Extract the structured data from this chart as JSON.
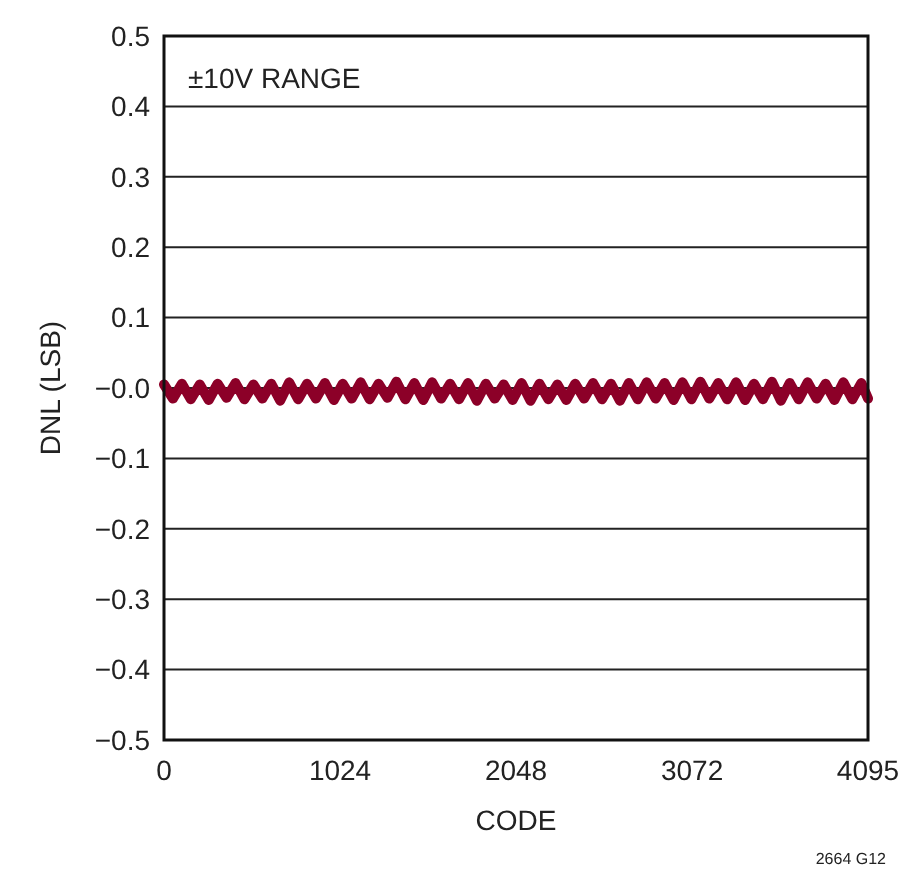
{
  "chart_data": {
    "type": "line",
    "xlabel": "CODE",
    "ylabel": "DNL (LSB)",
    "annotations": [
      "±10V RANGE",
      "2664 G12"
    ],
    "x": [
      0,
      52,
      104,
      156,
      208,
      260,
      312,
      364,
      416,
      468,
      520,
      572,
      624,
      676,
      728,
      780,
      832,
      884,
      936,
      988,
      1040,
      1092,
      1144,
      1196,
      1248,
      1300,
      1352,
      1404,
      1456,
      1508,
      1560,
      1612,
      1664,
      1716,
      1768,
      1820,
      1872,
      1924,
      1976,
      2028,
      2080,
      2132,
      2184,
      2236,
      2288,
      2340,
      2392,
      2444,
      2496,
      2548,
      2600,
      2652,
      2704,
      2756,
      2808,
      2860,
      2912,
      2964,
      3016,
      3068,
      3120,
      3172,
      3224,
      3276,
      3328,
      3380,
      3432,
      3484,
      3536,
      3588,
      3640,
      3692,
      3744,
      3796,
      3848,
      3900,
      3952,
      4004,
      4056,
      4095
    ],
    "series": [
      {
        "color": "#8c0028",
        "values": [
          0.005,
          -0.015,
          0.006,
          -0.016,
          0.005,
          -0.017,
          0.006,
          -0.014,
          0.007,
          -0.016,
          0.005,
          -0.015,
          0.006,
          -0.018,
          0.008,
          -0.016,
          0.006,
          -0.015,
          0.007,
          -0.017,
          0.006,
          -0.015,
          0.008,
          -0.016,
          0.006,
          -0.014,
          0.009,
          -0.016,
          0.007,
          -0.017,
          0.008,
          -0.015,
          0.006,
          -0.016,
          0.007,
          -0.018,
          0.006,
          -0.015,
          0.005,
          -0.017,
          0.007,
          -0.018,
          0.006,
          -0.016,
          0.005,
          -0.017,
          0.006,
          -0.015,
          0.007,
          -0.016,
          0.006,
          -0.018,
          0.007,
          -0.016,
          0.008,
          -0.015,
          0.007,
          -0.017,
          0.008,
          -0.016,
          0.009,
          -0.015,
          0.007,
          -0.016,
          0.008,
          -0.017,
          0.006,
          -0.016,
          0.009,
          -0.018,
          0.007,
          -0.016,
          0.008,
          -0.015,
          0.006,
          -0.017,
          0.008,
          -0.016,
          0.007,
          -0.015
        ]
      }
    ],
    "xlim": [
      0,
      4095
    ],
    "xticks": [
      0,
      1024,
      2048,
      3072,
      4095
    ],
    "ylim": [
      -0.5,
      0.5
    ],
    "yticks": [
      0.5,
      0.4,
      0.3,
      0.2,
      0.1,
      {
        "value": 0,
        "label": "−0.0"
      },
      {
        "value": -0.1,
        "label": "−0.1"
      },
      {
        "value": -0.2,
        "label": "−0.2"
      },
      {
        "value": -0.3,
        "label": "−0.3"
      },
      {
        "value": -0.4,
        "label": "−0.4"
      },
      {
        "value": -0.5,
        "label": "−0.5"
      }
    ],
    "grid": "y",
    "marker": "none",
    "line_style": "solid"
  }
}
